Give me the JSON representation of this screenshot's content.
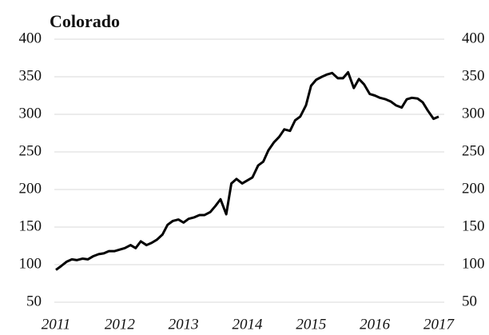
{
  "chart_data": {
    "type": "line",
    "title": "Colorado",
    "x": [
      2011,
      2011.08,
      2011.17,
      2011.25,
      2011.33,
      2011.42,
      2011.5,
      2011.58,
      2011.67,
      2011.75,
      2011.83,
      2011.92,
      2012,
      2012.08,
      2012.17,
      2012.25,
      2012.33,
      2012.42,
      2012.5,
      2012.58,
      2012.67,
      2012.75,
      2012.83,
      2012.92,
      2013,
      2013.08,
      2013.17,
      2013.25,
      2013.33,
      2013.42,
      2013.5,
      2013.58,
      2013.67,
      2013.75,
      2013.83,
      2013.92,
      2014,
      2014.08,
      2014.17,
      2014.25,
      2014.33,
      2014.42,
      2014.5,
      2014.58,
      2014.67,
      2014.75,
      2014.83,
      2014.92,
      2015,
      2015.08,
      2015.17,
      2015.25,
      2015.33,
      2015.42,
      2015.5,
      2015.58,
      2015.67,
      2015.75,
      2015.83,
      2015.92,
      2016,
      2016.08,
      2016.17,
      2016.25,
      2016.33,
      2016.42,
      2016.5,
      2016.58,
      2016.67,
      2016.75,
      2016.83,
      2016.92,
      2017
    ],
    "series": [
      {
        "color": "#000000",
        "values": [
          93,
          98,
          104,
          107,
          106,
          108,
          107,
          111,
          114,
          115,
          118,
          118,
          120,
          122,
          126,
          122,
          131,
          126,
          129,
          133,
          140,
          153,
          158,
          160,
          156,
          161,
          163,
          166,
          166,
          170,
          178,
          187,
          167,
          208,
          214,
          208,
          212,
          216,
          232,
          237,
          252,
          263,
          270,
          280,
          278,
          292,
          297,
          312,
          338,
          346,
          350,
          353,
          355,
          348,
          348,
          356,
          335,
          347,
          340,
          327,
          325,
          322,
          320,
          317,
          312,
          309,
          320,
          322,
          321,
          316,
          305,
          294,
          297
        ]
      }
    ],
    "xlim": [
      2011,
      2017
    ],
    "xticks": [
      2011,
      2012,
      2013,
      2014,
      2015,
      2016,
      2017
    ],
    "ylim": [
      50,
      400
    ],
    "yticks": [
      50,
      100,
      150,
      200,
      250,
      300,
      350,
      400
    ],
    "grid": true
  }
}
